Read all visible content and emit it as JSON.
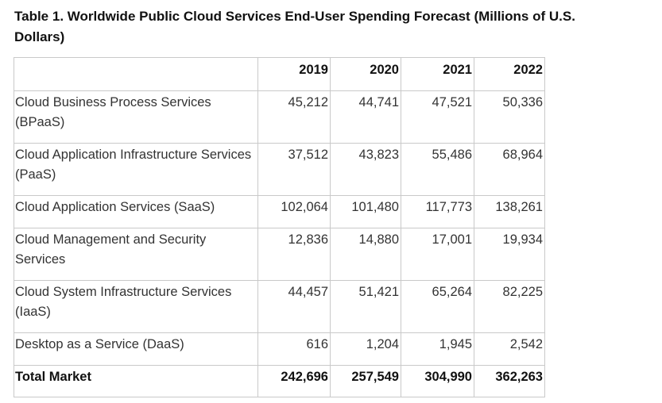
{
  "caption": "Table 1. Worldwide Public Cloud Services End-User Spending Forecast (Millions of U.S. Dollars)",
  "table": {
    "columns": [
      "",
      "2019",
      "2020",
      "2021",
      "2022"
    ],
    "rows": [
      {
        "label": "Cloud Business Process Services (BPaaS)",
        "values": [
          "45,212",
          "44,741",
          "47,521",
          "50,336"
        ]
      },
      {
        "label": "Cloud Application Infrastructure Services (PaaS)",
        "values": [
          "37,512",
          "43,823",
          "55,486",
          "68,964"
        ]
      },
      {
        "label": "Cloud Application Services (SaaS)",
        "values": [
          "102,064",
          "101,480",
          "117,773",
          "138,261"
        ]
      },
      {
        "label": "Cloud Management and Security Services",
        "values": [
          "12,836",
          "14,880",
          "17,001",
          "19,934"
        ]
      },
      {
        "label": "Cloud System Infrastructure Services (IaaS)",
        "values": [
          "44,457",
          "51,421",
          "65,264",
          "82,225"
        ]
      },
      {
        "label": "Desktop as a Service (DaaS)",
        "values": [
          "616",
          "1,204",
          "1,945",
          "2,542"
        ]
      },
      {
        "label": "Total Market",
        "values": [
          "242,696",
          "257,549",
          "304,990",
          "362,263"
        ]
      }
    ]
  }
}
